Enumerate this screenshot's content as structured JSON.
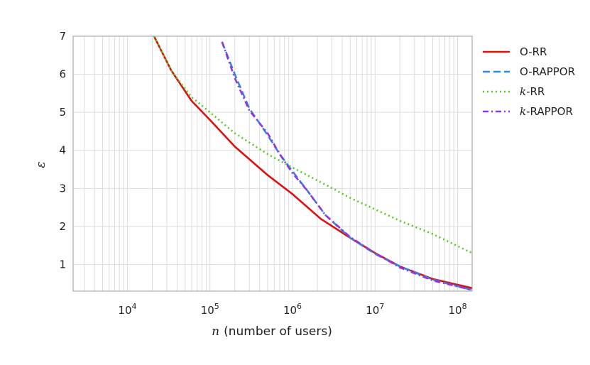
{
  "chart_data": {
    "type": "line",
    "xlabel": "(number of users)",
    "xlabel_var": "n",
    "ylabel": "ε",
    "x_scale": "log",
    "xlim": [
      2200,
      150000000
    ],
    "ylim": [
      0.3,
      7
    ],
    "grid": true,
    "legend_placement": "outside-right",
    "x_ticks": [
      {
        "value": 10000,
        "base": "10",
        "exp": "4"
      },
      {
        "value": 100000,
        "base": "10",
        "exp": "5"
      },
      {
        "value": 1000000,
        "base": "10",
        "exp": "6"
      },
      {
        "value": 10000000,
        "base": "10",
        "exp": "7"
      },
      {
        "value": 100000000,
        "base": "10",
        "exp": "8"
      }
    ],
    "y_ticks": [
      1,
      2,
      3,
      4,
      5,
      6,
      7
    ],
    "y_tick_labels": [
      "1",
      "2",
      "3",
      "4",
      "5",
      "6",
      "7"
    ],
    "series": [
      {
        "name": "O-RR",
        "label_prefix": "",
        "label_suffix": "O-RR",
        "color": "#dd1111",
        "style": "solid",
        "points": [
          [
            21000,
            7.0
          ],
          [
            34000,
            6.1
          ],
          [
            60000,
            5.3
          ],
          [
            100000,
            4.8
          ],
          [
            200000,
            4.1
          ],
          [
            500000,
            3.35
          ],
          [
            1000000,
            2.85
          ],
          [
            2200000,
            2.2
          ],
          [
            5000000,
            1.7
          ],
          [
            10000000,
            1.3
          ],
          [
            20000000,
            0.95
          ],
          [
            50000000,
            0.62
          ],
          [
            150000000,
            0.38
          ]
        ]
      },
      {
        "name": "O-RAPPOR",
        "label_prefix": "",
        "label_suffix": "O-RAPPOR",
        "color": "#2a8be0",
        "style": "dashed",
        "points": [
          [
            140000,
            6.85
          ],
          [
            200000,
            6.0
          ],
          [
            300000,
            5.1
          ],
          [
            500000,
            4.4
          ],
          [
            700000,
            3.9
          ],
          [
            1000000,
            3.45
          ],
          [
            1500000,
            2.95
          ],
          [
            2500000,
            2.3
          ],
          [
            5000000,
            1.7
          ],
          [
            10000000,
            1.28
          ],
          [
            20000000,
            0.95
          ],
          [
            50000000,
            0.6
          ],
          [
            150000000,
            0.33
          ]
        ]
      },
      {
        "name": "k-RR",
        "label_prefix": "k",
        "label_suffix": "-RR",
        "color": "#55cc22",
        "style": "dotted",
        "points": [
          [
            21000,
            7.0
          ],
          [
            34000,
            6.1
          ],
          [
            60000,
            5.4
          ],
          [
            100000,
            5.0
          ],
          [
            200000,
            4.45
          ],
          [
            500000,
            3.9
          ],
          [
            1000000,
            3.55
          ],
          [
            2500000,
            3.1
          ],
          [
            5000000,
            2.75
          ],
          [
            10000000,
            2.45
          ],
          [
            20000000,
            2.15
          ],
          [
            50000000,
            1.8
          ],
          [
            150000000,
            1.3
          ]
        ]
      },
      {
        "name": "k-RAPPOR",
        "label_prefix": "k",
        "label_suffix": "-RAPPOR",
        "color": "#9933dd",
        "style": "dashdot",
        "points": [
          [
            140000,
            6.85
          ],
          [
            200000,
            5.9
          ],
          [
            300000,
            5.05
          ],
          [
            500000,
            4.45
          ],
          [
            700000,
            3.9
          ],
          [
            1000000,
            3.4
          ],
          [
            1500000,
            2.95
          ],
          [
            2500000,
            2.3
          ],
          [
            5000000,
            1.72
          ],
          [
            10000000,
            1.3
          ],
          [
            20000000,
            0.92
          ],
          [
            50000000,
            0.58
          ],
          [
            150000000,
            0.33
          ]
        ]
      }
    ]
  }
}
